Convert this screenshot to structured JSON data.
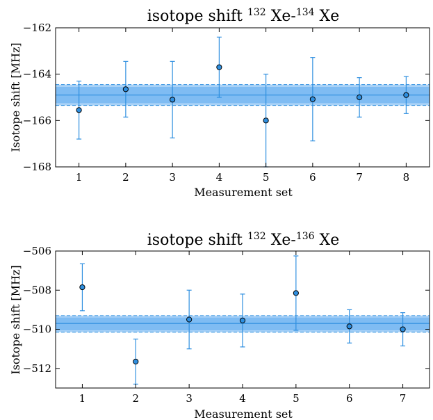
{
  "colors": {
    "point": "#2e8fe0",
    "errorbar": "#2e8fe0",
    "band_inner": "#7fbcf3",
    "band_outer": "#a9d2f7",
    "mean_line": "#2e8fe0"
  },
  "chart_data": [
    {
      "type": "scatter",
      "title_main": "isotope shift ",
      "title_sup1": "132",
      "title_mid": " Xe-",
      "title_sup2": "134",
      "title_end": " Xe",
      "xlabel": "Measurement set",
      "ylabel": "Isotope shift [MHz]",
      "xlim": [
        0.5,
        8.5
      ],
      "ylim": [
        -168,
        -162
      ],
      "xticks": [
        1,
        2,
        3,
        4,
        5,
        6,
        7,
        8
      ],
      "yticks": [
        -168,
        -166,
        -164,
        -162
      ],
      "ytick_labels": [
        "−168",
        "−166",
        "−164",
        "−162"
      ],
      "grid": false,
      "x": [
        1,
        2,
        3,
        4,
        5,
        6,
        7,
        8
      ],
      "y": [
        -165.55,
        -164.65,
        -165.1,
        -163.7,
        -166.0,
        -165.08,
        -165.0,
        -164.9
      ],
      "yerr": [
        1.25,
        1.2,
        1.65,
        1.3,
        2.0,
        1.8,
        0.85,
        0.8
      ],
      "mean": -164.9,
      "band_inner": [
        -165.25,
        -164.55
      ],
      "band_outer": [
        -165.35,
        -164.45
      ]
    },
    {
      "type": "scatter",
      "title_main": "isotope shift ",
      "title_sup1": "132",
      "title_mid": " Xe-",
      "title_sup2": "136",
      "title_end": " Xe",
      "xlabel": "Measurement set",
      "ylabel": "Isotope shift [MHz]",
      "xlim": [
        0.5,
        7.5
      ],
      "ylim": [
        -513,
        -506
      ],
      "xticks": [
        1,
        2,
        3,
        4,
        5,
        6,
        7
      ],
      "yticks": [
        -512,
        -510,
        -508,
        -506
      ],
      "ytick_labels": [
        "−512",
        "−510",
        "−508",
        "−506"
      ],
      "grid": false,
      "x": [
        1,
        2,
        3,
        4,
        5,
        6,
        7
      ],
      "y": [
        -507.85,
        -511.65,
        -509.5,
        -509.55,
        -508.15,
        -509.85,
        -510.0
      ],
      "yerr": [
        1.2,
        1.15,
        1.5,
        1.35,
        1.9,
        0.85,
        0.85
      ],
      "mean": -509.7,
      "band_inner": [
        -510.05,
        -509.4
      ],
      "band_outer": [
        -510.15,
        -509.3
      ]
    }
  ]
}
